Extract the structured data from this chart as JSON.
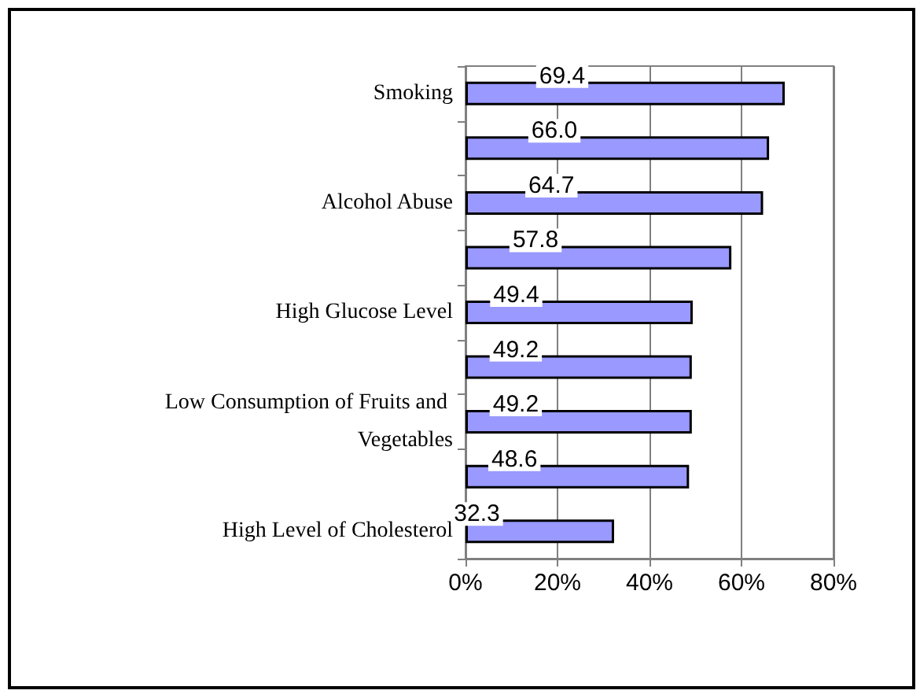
{
  "chart_data": {
    "type": "bar",
    "orientation": "horizontal",
    "categories": [
      "Smoking",
      null,
      "Alcohol Abuse",
      null,
      "High Glucose Level",
      null,
      "Low Consumption of Fruits and Vegetables",
      null,
      "High Level of Cholesterol"
    ],
    "values": [
      69.4,
      66.0,
      64.7,
      57.8,
      49.4,
      49.2,
      49.2,
      48.6,
      32.3
    ],
    "value_labels": [
      "69.4",
      "66.0",
      "64.7",
      "57.8",
      "49.4",
      "49.2",
      "49.2",
      "48.6",
      "32.3"
    ],
    "color": "#9999ff",
    "xlim": [
      0,
      80
    ],
    "xticks": [
      {
        "value": 0,
        "label": "0%"
      },
      {
        "value": 20,
        "label": "20%"
      },
      {
        "value": 40,
        "label": "40%"
      },
      {
        "value": 60,
        "label": "60%"
      },
      {
        "value": 80,
        "label": "80%"
      }
    ],
    "grid": "x"
  }
}
